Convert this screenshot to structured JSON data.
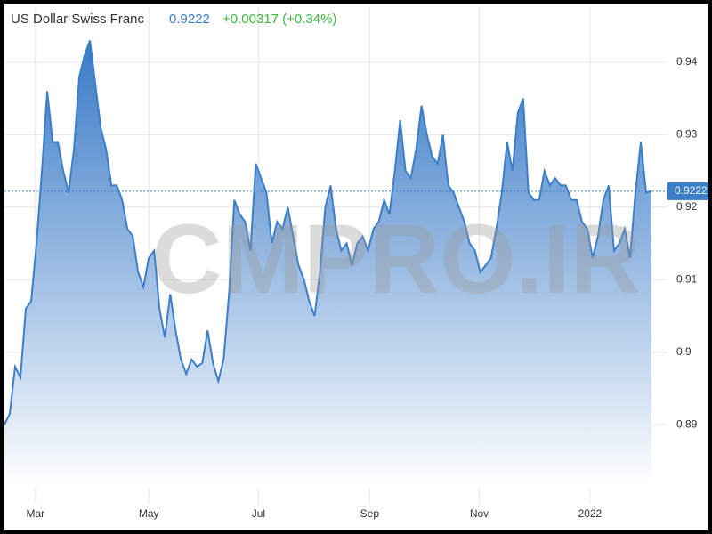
{
  "chart_data": {
    "type": "area",
    "title": "US Dollar Swiss Franc",
    "price": 0.9222,
    "change": "+0.00317 (+0.34%)",
    "watermark": "CMPRO.IR",
    "color": "#3d7ec8",
    "grid": true,
    "xlim": [
      0,
      124
    ],
    "xticks": [
      {
        "value": 5.8,
        "label": "Mar"
      },
      {
        "value": 27,
        "label": "May"
      },
      {
        "value": 47.5,
        "label": "Jul"
      },
      {
        "value": 68.3,
        "label": "Sep"
      },
      {
        "value": 88.8,
        "label": "Nov"
      },
      {
        "value": 109.5,
        "label": "2022"
      }
    ],
    "ylim": [
      0.8813,
      0.9476
    ],
    "yticks": [
      0.89,
      0.9,
      0.91,
      0.92,
      0.93,
      0.94
    ],
    "values": [
      0.89,
      0.8915,
      0.898,
      0.8965,
      0.906,
      0.907,
      0.915,
      0.925,
      0.936,
      0.929,
      0.929,
      0.925,
      0.922,
      0.928,
      0.938,
      0.941,
      0.943,
      0.937,
      0.931,
      0.928,
      0.923,
      0.923,
      0.921,
      0.917,
      0.916,
      0.911,
      0.909,
      0.913,
      0.914,
      0.906,
      0.902,
      0.908,
      0.903,
      0.899,
      0.897,
      0.899,
      0.898,
      0.8985,
      0.903,
      0.8985,
      0.896,
      0.899,
      0.908,
      0.921,
      0.919,
      0.918,
      0.914,
      0.926,
      0.924,
      0.922,
      0.915,
      0.918,
      0.917,
      0.92,
      0.916,
      0.912,
      0.91,
      0.907,
      0.905,
      0.911,
      0.92,
      0.923,
      0.917,
      0.914,
      0.915,
      0.912,
      0.915,
      0.916,
      0.914,
      0.917,
      0.918,
      0.921,
      0.919,
      0.925,
      0.932,
      0.925,
      0.924,
      0.928,
      0.934,
      0.93,
      0.927,
      0.926,
      0.93,
      0.923,
      0.922,
      0.92,
      0.918,
      0.915,
      0.914,
      0.911,
      0.912,
      0.913,
      0.917,
      0.922,
      0.929,
      0.925,
      0.933,
      0.935,
      0.922,
      0.921,
      0.921,
      0.925,
      0.923,
      0.924,
      0.923,
      0.923,
      0.921,
      0.921,
      0.918,
      0.917,
      0.913,
      0.916,
      0.921,
      0.923,
      0.914,
      0.915,
      0.917,
      0.913,
      0.922,
      0.929,
      0.922,
      0.9222
    ]
  }
}
